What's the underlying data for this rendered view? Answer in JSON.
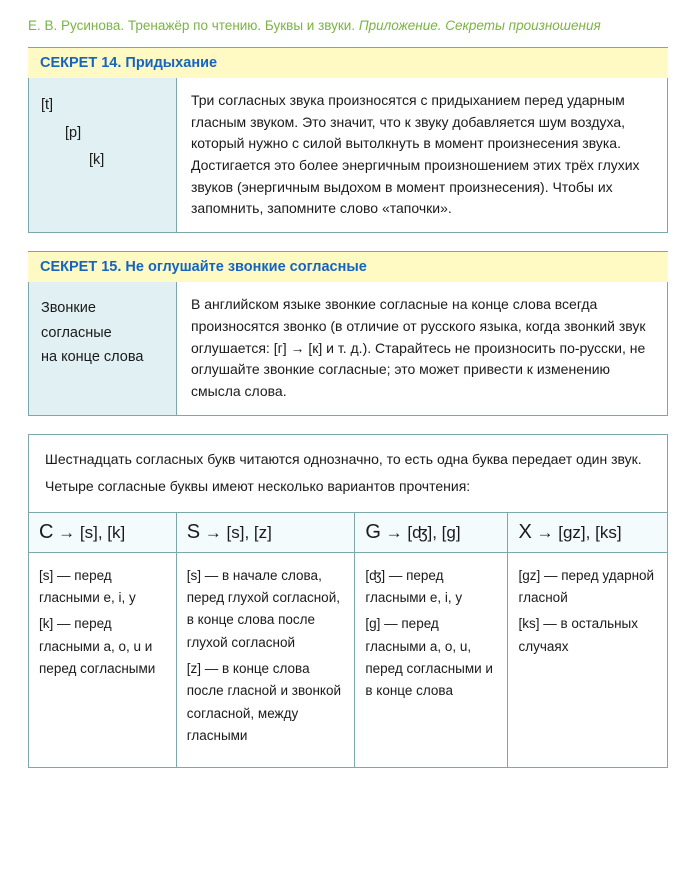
{
  "header": {
    "author": "Е. В. Русинова.",
    "title_plain": " Тренажёр по чтению. Буквы и звуки. ",
    "title_italic": "Приложение. Секреты произношения"
  },
  "secret14": {
    "title": "СЕКРЕТ 14. Придыхание",
    "left_t": "[t]",
    "left_p": "[p]",
    "left_k": "[k]",
    "body": "Три согласных звука произносятся с придыханием перед ударным гласным звуком. Это значит, что к звуку добавляется шум воздуха, который нужно с силой вытолкнуть в момент произнесения звука. Достигается это более энергичным произношением этих трёх глухих звуков (энергичным выдохом в момент произнесения). Чтобы их запомнить, запомните слово «тапочки»."
  },
  "secret15": {
    "title": "СЕКРЕТ 15. Не оглушайте звонкие согласные",
    "left_line1": "Звонкие",
    "left_line2": "согласные",
    "left_line3": "на конце слова",
    "body": "В английском языке звонкие согласные на конце слова всегда произносятся звонко (в отличие от русского языка, когда звонкий звук оглушается: [г] → [к] и т. д.). Старайтесь не произносить по-русски, не оглушайте звонкие согласные; это может привести к изменению смысла слова."
  },
  "info": {
    "intro_line1": "Шестнадцать согласных букв читаются однозначно, то есть одна буква передает один звук.",
    "intro_line2": "Четыре согласные буквы имеют несколько вариантов прочтения:",
    "c": {
      "head_letter": "C",
      "head_sounds": " → [s], [k]",
      "body": "[s] — перед гласными e, i, y\n[k] — перед гласными a, o, u и перед согласными"
    },
    "s": {
      "head_letter": "S",
      "head_sounds": " → [s], [z]",
      "body": "[s] — в начале слова, перед глухой согласной, в конце слова после глухой согласной\n[z] — в конце слова после гласной и звонкой согласной, между гласными"
    },
    "g": {
      "head_letter": "G",
      "head_sounds": " → [ʤ], [g]",
      "body": "[ʤ] — перед гласными e, i, y\n[g] — перед гласными a, o, u, перед согласными и в конце слова"
    },
    "x": {
      "head_letter": "X",
      "head_sounds": " → [gz], [ks]",
      "body": "[gz] — перед ударной гласной\n[ks] — в остальных случаях"
    }
  }
}
